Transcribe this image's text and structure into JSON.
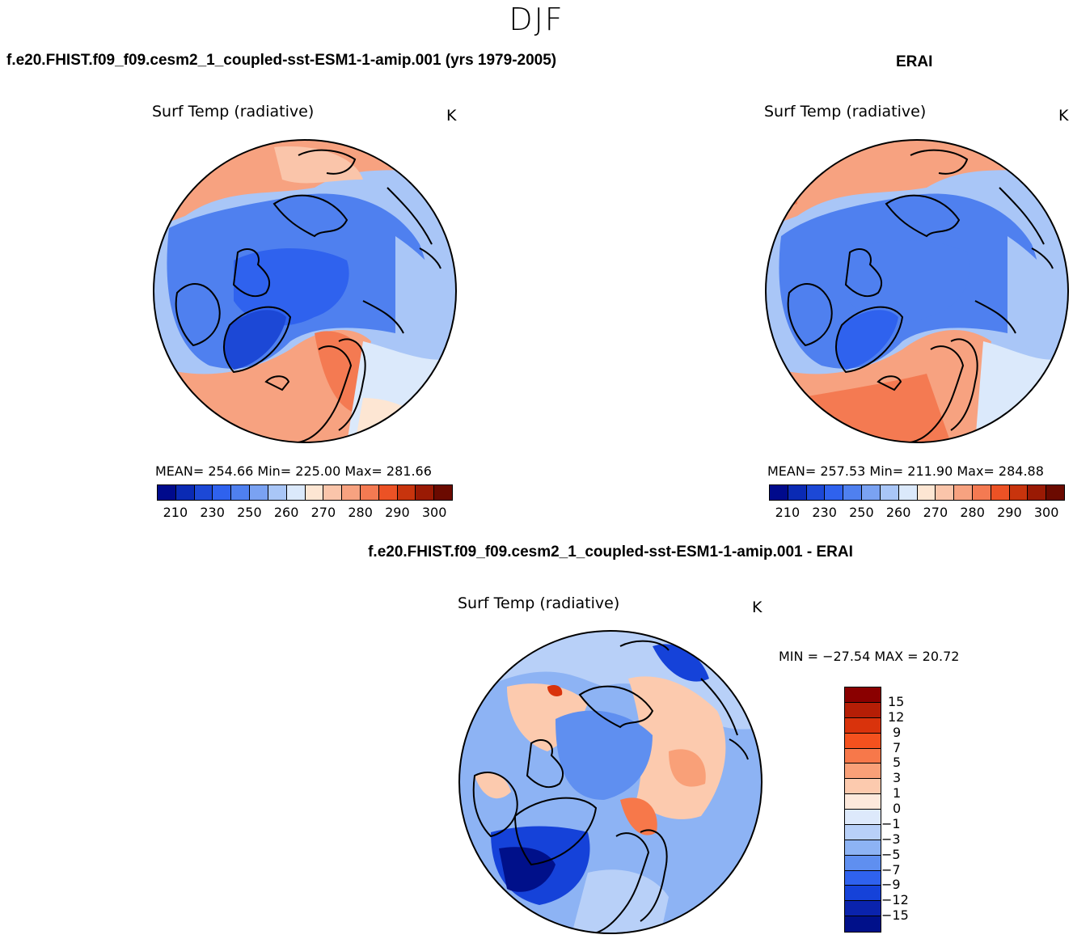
{
  "figure": {
    "season": "DJF",
    "case_title": "f.e20.FHIST.f09_f09.cesm2_1_coupled-sst-ESM1-1-amip.001 (yrs 1979-2005)",
    "obs_title": "ERAI",
    "diff_title": "f.e20.FHIST.f09_f09.cesm2_1_coupled-sst-ESM1-1-amip.001 - ERAI"
  },
  "panels": {
    "model": {
      "variable": "Surf Temp (radiative)",
      "units": "K",
      "stats_text": "MEAN= 254.66   Min= 225.00   Max= 281.66"
    },
    "obs": {
      "variable": "Surf Temp (radiative)",
      "units": "K",
      "stats_text": "MEAN= 257.53   Min= 211.90   Max= 284.88"
    },
    "diff": {
      "variable": "Surf Temp (radiative)",
      "units": "K",
      "stats_text": "MIN = −27.54 MAX =   20.72"
    }
  },
  "chart_data": [
    {
      "type": "heatmap",
      "title": "Surf Temp (radiative)",
      "panel": "model",
      "projection": "north polar stereographic",
      "units": "K",
      "mean": 254.66,
      "min": 225.0,
      "max": 281.66,
      "colorbar_ticks": [
        "210",
        "230",
        "250",
        "260",
        "270",
        "280",
        "290",
        "300"
      ],
      "colorbar_colors": [
        "#000a8c",
        "#0a2ab4",
        "#1c48d6",
        "#2f62ee",
        "#4f80ef",
        "#7aa2f2",
        "#a9c6f7",
        "#dbe9fb",
        "#fde6d3",
        "#fac5aa",
        "#f7a280",
        "#f47a52",
        "#ec5225",
        "#c8340d",
        "#9a1a04",
        "#6b0a00"
      ]
    },
    {
      "type": "heatmap",
      "title": "Surf Temp (radiative)",
      "panel": "obs",
      "projection": "north polar stereographic",
      "units": "K",
      "mean": 257.53,
      "min": 211.9,
      "max": 284.88,
      "colorbar_ticks": [
        "210",
        "230",
        "250",
        "260",
        "270",
        "280",
        "290",
        "300"
      ],
      "colorbar_colors": [
        "#000a8c",
        "#0a2ab4",
        "#1c48d6",
        "#2f62ee",
        "#4f80ef",
        "#7aa2f2",
        "#a9c6f7",
        "#dbe9fb",
        "#fde6d3",
        "#fac5aa",
        "#f7a280",
        "#f47a52",
        "#ec5225",
        "#c8340d",
        "#9a1a04",
        "#6b0a00"
      ]
    },
    {
      "type": "heatmap",
      "title": "Surf Temp (radiative)",
      "panel": "diff",
      "projection": "north polar stereographic",
      "units": "K",
      "min": -27.54,
      "max": 20.72,
      "colorbar_ticks": [
        "15",
        "12",
        "9",
        "7",
        "5",
        "3",
        "1",
        "0",
        "−1",
        "−3",
        "−5",
        "−7",
        "−9",
        "−12",
        "−15"
      ],
      "colorbar_colors": [
        "#8a0000",
        "#b51e06",
        "#d9330c",
        "#f4511e",
        "#f7784a",
        "#f9a078",
        "#fccaae",
        "#fde9dc",
        "#dde9fb",
        "#b8d0f8",
        "#8db3f4",
        "#5f8ff0",
        "#2f62ee",
        "#1542d9",
        "#0a23ad",
        "#00108a"
      ]
    }
  ]
}
